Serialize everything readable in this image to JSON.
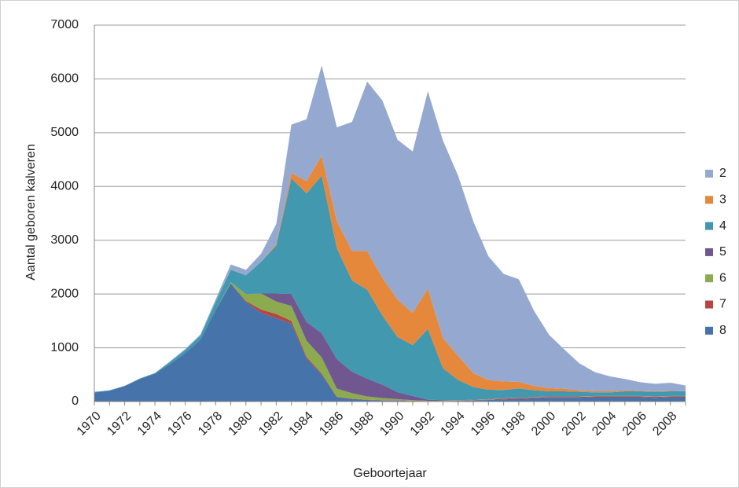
{
  "chart_data": {
    "type": "stacked_area",
    "y_label": "Aantal geboren kalveren",
    "x_label": "Geboortejaar",
    "categories": [
      "1970",
      null,
      "1972",
      null,
      "1974",
      null,
      "1976",
      null,
      "1978",
      null,
      "1980",
      null,
      "1982",
      null,
      "1984",
      null,
      "1986",
      null,
      "1988",
      null,
      "1990",
      null,
      "1992",
      null,
      "1994",
      null,
      "1996",
      null,
      "1998",
      null,
      "2000",
      null,
      "2002",
      null,
      "2004",
      null,
      "2006",
      null,
      "2008",
      null
    ],
    "ylim": [
      0,
      7000
    ],
    "yticks": [
      0,
      1000,
      2000,
      3000,
      4000,
      5000,
      6000,
      7000
    ],
    "grid": true,
    "legend": "right",
    "series": [
      {
        "name": "2",
        "color": "#95a9d0",
        "values": [
          0,
          0,
          0,
          0,
          0,
          10,
          20,
          20,
          50,
          100,
          100,
          150,
          370,
          900,
          1150,
          1680,
          1750,
          2400,
          3150,
          3300,
          2970,
          3000,
          3670,
          3670,
          3350,
          2820,
          2300,
          2000,
          1910,
          1400,
          990,
          730,
          500,
          360,
          280,
          210,
          160,
          140,
          150,
          110
        ]
      },
      {
        "name": "3",
        "color": "#e6883c",
        "values": [
          0,
          0,
          0,
          0,
          0,
          0,
          0,
          0,
          0,
          0,
          0,
          0,
          30,
          100,
          230,
          370,
          500,
          550,
          720,
          700,
          700,
          600,
          750,
          560,
          450,
          260,
          180,
          160,
          120,
          80,
          60,
          50,
          30,
          20,
          20,
          20,
          10,
          10,
          10,
          0
        ]
      },
      {
        "name": "4",
        "color": "#4198af",
        "values": [
          10,
          10,
          0,
          10,
          10,
          40,
          60,
          80,
          150,
          230,
          350,
          590,
          890,
          2150,
          2390,
          2930,
          2060,
          1695,
          1655,
          1285,
          1025,
          945,
          1315,
          595,
          375,
          235,
          175,
          150,
          170,
          125,
          95,
          95,
          85,
          65,
          65,
          85,
          85,
          85,
          85,
          85
        ]
      },
      {
        "name": "5",
        "color": "#71578f",
        "values": [
          0,
          0,
          0,
          0,
          0,
          0,
          0,
          0,
          0,
          0,
          0,
          0,
          150,
          220,
          350,
          450,
          550,
          400,
          330,
          250,
          130,
          80,
          20,
          10,
          5,
          5,
          5,
          5,
          5,
          5,
          5,
          5,
          5,
          5,
          5,
          5,
          5,
          5,
          5,
          5
        ]
      },
      {
        "name": "6",
        "color": "#8bab4e",
        "values": [
          0,
          0,
          0,
          0,
          0,
          0,
          0,
          0,
          0,
          20,
          130,
          300,
          230,
          280,
          300,
          300,
          150,
          100,
          60,
          40,
          20,
          10,
          5,
          5,
          5,
          5,
          5,
          5,
          5,
          5,
          5,
          5,
          5,
          5,
          5,
          5,
          5,
          5,
          5,
          5
        ]
      },
      {
        "name": "7",
        "color": "#b94441",
        "values": [
          0,
          0,
          0,
          0,
          0,
          0,
          0,
          0,
          0,
          0,
          20,
          60,
          80,
          50,
          30,
          20,
          10,
          5,
          5,
          5,
          5,
          5,
          5,
          5,
          5,
          5,
          5,
          15,
          15,
          15,
          15,
          15,
          15,
          15,
          15,
          15,
          15,
          15,
          15,
          15
        ]
      },
      {
        "name": "8",
        "color": "#4673aa",
        "values": [
          170,
          200,
          290,
          420,
          520,
          700,
          900,
          1150,
          1700,
          2200,
          1850,
          1650,
          1550,
          1450,
          800,
          500,
          80,
          50,
          30,
          20,
          20,
          10,
          5,
          5,
          10,
          20,
          30,
          40,
          50,
          60,
          70,
          70,
          70,
          80,
          80,
          80,
          80,
          70,
          80,
          80
        ]
      }
    ]
  }
}
